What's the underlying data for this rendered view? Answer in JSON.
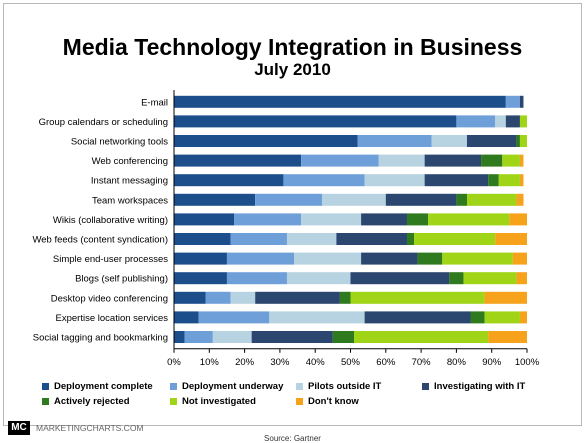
{
  "chart_data": {
    "type": "bar",
    "orientation": "horizontal",
    "stacked": true,
    "title": "Media Technology Integration in Business",
    "subtitle": "July 2010",
    "xlim": [
      0,
      100
    ],
    "x_ticks": [
      "0%",
      "10%",
      "20%",
      "30%",
      "40%",
      "50%",
      "60%",
      "70%",
      "80%",
      "90%",
      "100%"
    ],
    "grid": false,
    "legend_position": "bottom",
    "categories": [
      "E-mail",
      "Group calendars or scheduling",
      "Social networking tools",
      "Web conferencing",
      "Instant messaging",
      "Team workspaces",
      "Wikis (collaborative writing)",
      "Web feeds (content syndication)",
      "Simple end-user processes",
      "Blogs (self publishing)",
      "Desktop video conferencing",
      "Expertise location services",
      "Social tagging and bookmarking"
    ],
    "series": [
      {
        "name": "Deployment complete",
        "color": "#1c4e8c",
        "values": [
          94,
          80,
          52,
          36,
          31,
          23,
          17,
          16,
          15,
          15,
          9,
          7,
          3
        ]
      },
      {
        "name": "Deployment underway",
        "color": "#6f9fd8",
        "values": [
          4,
          11,
          21,
          22,
          23,
          19,
          19,
          16,
          19,
          17,
          7,
          20,
          8
        ]
      },
      {
        "name": "Pilots outside IT",
        "color": "#b7d2e0",
        "values": [
          0,
          3,
          10,
          13,
          17,
          18,
          17,
          14,
          19,
          18,
          7,
          27,
          11
        ]
      },
      {
        "name": "Investigating with IT",
        "color": "#2b4770",
        "values": [
          1,
          4,
          14,
          16,
          18,
          20,
          13,
          20,
          16,
          28,
          24,
          30,
          23
        ]
      },
      {
        "name": "Actively rejected",
        "color": "#2f7a1e",
        "values": [
          0,
          0,
          1,
          6,
          3,
          3,
          6,
          2,
          7,
          4,
          3,
          4,
          6
        ]
      },
      {
        "name": "Not investigated",
        "color": "#9fd417",
        "values": [
          0,
          2,
          2,
          5,
          6,
          14,
          23,
          23,
          20,
          15,
          38,
          10,
          38
        ]
      },
      {
        "name": "Don't know",
        "color": "#f7a21b",
        "values": [
          0,
          0,
          0,
          1,
          1,
          2,
          5,
          9,
          4,
          3,
          12,
          2,
          11
        ]
      }
    ]
  },
  "footer": {
    "logo_text": "MC",
    "site": "MARKETINGCHARTS.COM",
    "source": "Source: Gartner"
  }
}
